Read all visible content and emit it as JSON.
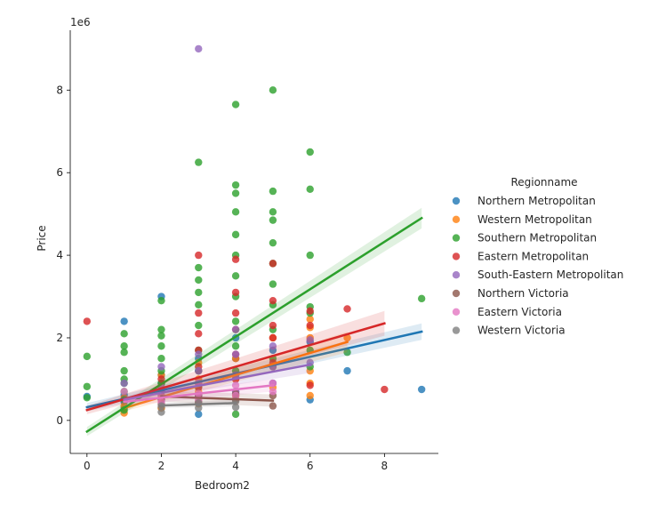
{
  "chart_data": {
    "type": "scatter",
    "xlabel": "Bedroom2",
    "ylabel": "Price",
    "y_offset_text": "1e6",
    "xlim": [
      -0.45,
      9.45
    ],
    "ylim": [
      -800000,
      9450000
    ],
    "xticks": [
      0,
      2,
      4,
      6,
      8
    ],
    "yticks": [
      0,
      2000000,
      4000000,
      6000000,
      8000000
    ],
    "ytick_labels": [
      "0",
      "2",
      "4",
      "6",
      "8"
    ],
    "legend_title": "Regionname",
    "legend_position": "right",
    "series": [
      {
        "name": "Northern Metropolitan",
        "color": "#1f77b4",
        "points": [
          [
            0,
            580000
          ],
          [
            1,
            300000
          ],
          [
            1,
            450000
          ],
          [
            1,
            620000
          ],
          [
            1,
            2400000
          ],
          [
            2,
            300000
          ],
          [
            2,
            500000
          ],
          [
            2,
            700000
          ],
          [
            2,
            900000
          ],
          [
            2,
            1100000
          ],
          [
            2,
            3000000
          ],
          [
            3,
            150000
          ],
          [
            3,
            600000
          ],
          [
            3,
            900000
          ],
          [
            3,
            1200000
          ],
          [
            3,
            1500000
          ],
          [
            4,
            700000
          ],
          [
            4,
            1100000
          ],
          [
            4,
            1500000
          ],
          [
            4,
            2000000
          ],
          [
            5,
            900000
          ],
          [
            5,
            1300000
          ],
          [
            5,
            1700000
          ],
          [
            6,
            500000
          ],
          [
            6,
            1900000
          ],
          [
            7,
            1200000
          ],
          [
            9,
            750000
          ]
        ],
        "fit": [
          [
            0,
            320000
          ],
          [
            9,
            2150000
          ]
        ],
        "band": [
          [
            0,
            220000,
            420000
          ],
          [
            9,
            1950000,
            2350000
          ]
        ]
      },
      {
        "name": "Western Metropolitan",
        "color": "#ff7f0e",
        "points": [
          [
            1,
            180000
          ],
          [
            1,
            350000
          ],
          [
            1,
            550000
          ],
          [
            2,
            300000
          ],
          [
            2,
            550000
          ],
          [
            2,
            800000
          ],
          [
            2,
            1100000
          ],
          [
            3,
            400000
          ],
          [
            3,
            700000
          ],
          [
            3,
            1000000
          ],
          [
            3,
            1400000
          ],
          [
            4,
            600000
          ],
          [
            4,
            1000000
          ],
          [
            4,
            1500000
          ],
          [
            5,
            800000
          ],
          [
            5,
            1300000
          ],
          [
            5,
            2000000
          ],
          [
            6,
            600000
          ],
          [
            6,
            900000
          ],
          [
            6,
            1200000
          ],
          [
            6,
            2000000
          ],
          [
            6,
            2250000
          ],
          [
            6,
            2450000
          ],
          [
            7,
            2000000
          ]
        ],
        "fit": [
          [
            1,
            300000
          ],
          [
            7,
            1900000
          ]
        ],
        "band": [
          [
            1,
            220000,
            380000
          ],
          [
            7,
            1650000,
            2150000
          ]
        ]
      },
      {
        "name": "Southern Metropolitan",
        "color": "#2ca02c",
        "points": [
          [
            0,
            550000
          ],
          [
            0,
            820000
          ],
          [
            0,
            1550000
          ],
          [
            1,
            250000
          ],
          [
            1,
            500000
          ],
          [
            1,
            700000
          ],
          [
            1,
            900000
          ],
          [
            1,
            1000000
          ],
          [
            1,
            1200000
          ],
          [
            1,
            1650000
          ],
          [
            1,
            1800000
          ],
          [
            1,
            2100000
          ],
          [
            2,
            600000
          ],
          [
            2,
            900000
          ],
          [
            2,
            1200000
          ],
          [
            2,
            1500000
          ],
          [
            2,
            1800000
          ],
          [
            2,
            2050000
          ],
          [
            2,
            2200000
          ],
          [
            2,
            2900000
          ],
          [
            3,
            800000
          ],
          [
            3,
            1200000
          ],
          [
            3,
            1700000
          ],
          [
            3,
            2300000
          ],
          [
            3,
            2800000
          ],
          [
            3,
            3100000
          ],
          [
            3,
            3400000
          ],
          [
            3,
            3700000
          ],
          [
            3,
            6250000
          ],
          [
            4,
            150000
          ],
          [
            4,
            1200000
          ],
          [
            4,
            1800000
          ],
          [
            4,
            2400000
          ],
          [
            4,
            3000000
          ],
          [
            4,
            3500000
          ],
          [
            4,
            4000000
          ],
          [
            4,
            4500000
          ],
          [
            4,
            5050000
          ],
          [
            4,
            5500000
          ],
          [
            4,
            5700000
          ],
          [
            4,
            7650000
          ],
          [
            5,
            1500000
          ],
          [
            5,
            2200000
          ],
          [
            5,
            2800000
          ],
          [
            5,
            3300000
          ],
          [
            5,
            3800000
          ],
          [
            5,
            4300000
          ],
          [
            5,
            4850000
          ],
          [
            5,
            5050000
          ],
          [
            5,
            5550000
          ],
          [
            5,
            8000000
          ],
          [
            6,
            1300000
          ],
          [
            6,
            1700000
          ],
          [
            6,
            2600000
          ],
          [
            6,
            2750000
          ],
          [
            6,
            4000000
          ],
          [
            6,
            5600000
          ],
          [
            6,
            6500000
          ],
          [
            7,
            1650000
          ],
          [
            9,
            2950000
          ]
        ],
        "fit": [
          [
            0,
            -270000
          ],
          [
            9,
            4900000
          ]
        ],
        "band": [
          [
            0,
            -380000,
            -160000
          ],
          [
            9,
            4650000,
            5150000
          ]
        ]
      },
      {
        "name": "Eastern Metropolitan",
        "color": "#d62728",
        "points": [
          [
            0,
            2400000
          ],
          [
            2,
            700000
          ],
          [
            2,
            1000000
          ],
          [
            3,
            800000
          ],
          [
            3,
            1300000
          ],
          [
            3,
            1700000
          ],
          [
            3,
            2100000
          ],
          [
            3,
            2600000
          ],
          [
            3,
            4000000
          ],
          [
            4,
            1000000
          ],
          [
            4,
            1600000
          ],
          [
            4,
            2200000
          ],
          [
            4,
            2600000
          ],
          [
            4,
            3100000
          ],
          [
            4,
            3900000
          ],
          [
            5,
            1400000
          ],
          [
            5,
            2000000
          ],
          [
            5,
            2300000
          ],
          [
            5,
            2900000
          ],
          [
            5,
            3800000
          ],
          [
            6,
            850000
          ],
          [
            6,
            2300000
          ],
          [
            6,
            2650000
          ],
          [
            7,
            2700000
          ],
          [
            8,
            750000
          ]
        ],
        "fit": [
          [
            0,
            250000
          ],
          [
            8,
            2350000
          ]
        ],
        "band": [
          [
            0,
            150000,
            350000
          ],
          [
            8,
            2050000,
            2650000
          ]
        ]
      },
      {
        "name": "South-Eastern Metropolitan",
        "color": "#9467bd",
        "points": [
          [
            1,
            900000
          ],
          [
            2,
            500000
          ],
          [
            2,
            800000
          ],
          [
            2,
            1300000
          ],
          [
            3,
            600000
          ],
          [
            3,
            900000
          ],
          [
            3,
            1200000
          ],
          [
            3,
            1600000
          ],
          [
            3,
            9000000
          ],
          [
            4,
            700000
          ],
          [
            4,
            1100000
          ],
          [
            4,
            1600000
          ],
          [
            4,
            2200000
          ],
          [
            5,
            900000
          ],
          [
            5,
            1300000
          ],
          [
            5,
            1800000
          ],
          [
            6,
            1400000
          ],
          [
            6,
            1950000
          ]
        ],
        "fit": [
          [
            1,
            500000
          ],
          [
            6,
            1350000
          ]
        ],
        "band": [
          [
            1,
            420000,
            580000
          ],
          [
            6,
            1150000,
            1550000
          ]
        ]
      },
      {
        "name": "Northern Victoria",
        "color": "#8c564b",
        "points": [
          [
            2,
            400000
          ],
          [
            2,
            550000
          ],
          [
            3,
            450000
          ],
          [
            3,
            600000
          ],
          [
            4,
            500000
          ],
          [
            4,
            650000
          ],
          [
            5,
            350000
          ],
          [
            5,
            600000
          ]
        ],
        "fit": [
          [
            2,
            580000
          ],
          [
            5,
            480000
          ]
        ],
        "band": [
          [
            2,
            450000,
            710000
          ],
          [
            5,
            330000,
            630000
          ]
        ]
      },
      {
        "name": "Eastern Victoria",
        "color": "#e377c2",
        "points": [
          [
            1,
            700000
          ],
          [
            2,
            450000
          ],
          [
            2,
            600000
          ],
          [
            2,
            800000
          ],
          [
            3,
            500000
          ],
          [
            3,
            650000
          ],
          [
            3,
            900000
          ],
          [
            4,
            600000
          ],
          [
            4,
            850000
          ],
          [
            5,
            700000
          ],
          [
            5,
            900000
          ]
        ],
        "fit": [
          [
            1,
            450000
          ],
          [
            5,
            850000
          ]
        ],
        "band": [
          [
            1,
            350000,
            550000
          ],
          [
            5,
            700000,
            1000000
          ]
        ]
      },
      {
        "name": "Western Victoria",
        "color": "#7f7f7f",
        "points": [
          [
            2,
            200000
          ],
          [
            2,
            350000
          ],
          [
            3,
            300000
          ],
          [
            3,
            420000
          ],
          [
            4,
            320000
          ],
          [
            4,
            460000
          ]
        ],
        "fit": [
          [
            2,
            360000
          ],
          [
            4,
            420000
          ]
        ],
        "band": [
          [
            2,
            300000,
            420000
          ],
          [
            4,
            340000,
            500000
          ]
        ]
      }
    ]
  }
}
